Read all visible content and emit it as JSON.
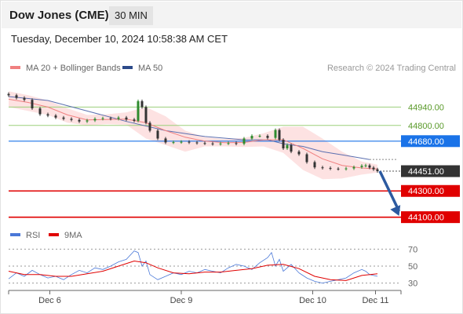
{
  "header": {
    "title": "Dow Jones (CME)",
    "interval": "30 MIN"
  },
  "timestamp": "Tuesday, December 10, 2024 10:58:38 AM CET",
  "colors": {
    "up": "#2e8b2e",
    "down": "#333333",
    "ma20": "#f08080",
    "bands": "#fde2e2",
    "ma50": "#5b6fb0",
    "green_line": "#9ccf7a",
    "blue_line": "#1a73e8",
    "red_line": "#e00000",
    "arrow": "#2c5aa0",
    "price_tag": "#333333",
    "rsi": "#4a78d8",
    "rsi_ma": "#e00000"
  },
  "chart_data": [
    {
      "type": "line",
      "legend": [
        {
          "label": "MA 20 + Bollinger Bands",
          "color": "#f08080"
        },
        {
          "label": "MA 50",
          "color": "#2c4a8a"
        }
      ],
      "legend_placement": "top-left",
      "credit": "Research © 2024 Trading Central",
      "ylim": [
        44020,
        45080
      ],
      "x_range": [
        0,
        100
      ],
      "x_ticks": [
        {
          "x": 10.5,
          "label": "Dec 6"
        },
        {
          "x": 44,
          "label": "Dec 9"
        },
        {
          "x": 77.5,
          "label": "Dec 10"
        },
        {
          "x": 93.5,
          "label": "Dec 11"
        }
      ],
      "price_series": [
        [
          0,
          45030
        ],
        [
          2,
          45010
        ],
        [
          4,
          44995
        ],
        [
          6,
          44930
        ],
        [
          8,
          44885
        ],
        [
          10,
          44875
        ],
        [
          12,
          44860
        ],
        [
          14,
          44850
        ],
        [
          16,
          44842
        ],
        [
          18,
          44830
        ],
        [
          20,
          44838
        ],
        [
          22,
          44850
        ],
        [
          24,
          44855
        ],
        [
          26,
          44850
        ],
        [
          28,
          44860
        ],
        [
          30,
          44845
        ],
        [
          32,
          44835
        ],
        [
          33,
          44985
        ],
        [
          34,
          44940
        ],
        [
          35,
          44820
        ],
        [
          36,
          44760
        ],
        [
          38,
          44700
        ],
        [
          40,
          44670
        ],
        [
          42,
          44672
        ],
        [
          44,
          44675
        ],
        [
          46,
          44670
        ],
        [
          48,
          44665
        ],
        [
          50,
          44662
        ],
        [
          52,
          44658
        ],
        [
          54,
          44662
        ],
        [
          56,
          44665
        ],
        [
          58,
          44660
        ],
        [
          60,
          44700
        ],
        [
          62,
          44720
        ],
        [
          64,
          44720
        ],
        [
          66,
          44705
        ],
        [
          68,
          44765
        ],
        [
          69,
          44690
        ],
        [
          70,
          44625
        ],
        [
          71,
          44650
        ],
        [
          72,
          44600
        ],
        [
          74,
          44580
        ],
        [
          76,
          44520
        ],
        [
          78,
          44480
        ],
        [
          80,
          44475
        ],
        [
          82,
          44470
        ],
        [
          84,
          44468
        ],
        [
          86,
          44472
        ],
        [
          88,
          44482
        ],
        [
          90,
          44492
        ],
        [
          91,
          44495
        ],
        [
          92,
          44478
        ],
        [
          93,
          44465
        ],
        [
          94,
          44451
        ]
      ],
      "ma20": [
        [
          0,
          45000
        ],
        [
          5,
          44975
        ],
        [
          10,
          44940
        ],
        [
          15,
          44880
        ],
        [
          20,
          44842
        ],
        [
          25,
          44845
        ],
        [
          30,
          44848
        ],
        [
          35,
          44820
        ],
        [
          40,
          44760
        ],
        [
          45,
          44710
        ],
        [
          50,
          44680
        ],
        [
          55,
          44668
        ],
        [
          60,
          44670
        ],
        [
          65,
          44690
        ],
        [
          70,
          44690
        ],
        [
          75,
          44625
        ],
        [
          80,
          44545
        ],
        [
          85,
          44495
        ],
        [
          90,
          44475
        ],
        [
          94,
          44468
        ]
      ],
      "upper_band": [
        [
          0,
          45060
        ],
        [
          5,
          45030
        ],
        [
          10,
          44990
        ],
        [
          15,
          44930
        ],
        [
          20,
          44880
        ],
        [
          25,
          44885
        ],
        [
          30,
          44900
        ],
        [
          35,
          44940
        ],
        [
          40,
          44870
        ],
        [
          45,
          44760
        ],
        [
          50,
          44710
        ],
        [
          55,
          44695
        ],
        [
          60,
          44705
        ],
        [
          65,
          44740
        ],
        [
          70,
          44790
        ],
        [
          75,
          44790
        ],
        [
          80,
          44700
        ],
        [
          85,
          44600
        ],
        [
          90,
          44525
        ],
        [
          94,
          44500
        ]
      ],
      "lower_band": [
        [
          0,
          44940
        ],
        [
          5,
          44910
        ],
        [
          10,
          44880
        ],
        [
          15,
          44820
        ],
        [
          20,
          44800
        ],
        [
          25,
          44810
        ],
        [
          30,
          44805
        ],
        [
          35,
          44700
        ],
        [
          40,
          44650
        ],
        [
          45,
          44600
        ],
        [
          50,
          44640
        ],
        [
          55,
          44640
        ],
        [
          60,
          44635
        ],
        [
          65,
          44640
        ],
        [
          70,
          44590
        ],
        [
          75,
          44460
        ],
        [
          80,
          44390
        ],
        [
          85,
          44395
        ],
        [
          90,
          44425
        ],
        [
          94,
          44440
        ]
      ],
      "ma50": [
        [
          0,
          45020
        ],
        [
          10,
          44990
        ],
        [
          20,
          44910
        ],
        [
          30,
          44830
        ],
        [
          40,
          44760
        ],
        [
          50,
          44715
        ],
        [
          60,
          44690
        ],
        [
          66,
          44690
        ],
        [
          70,
          44660
        ],
        [
          75,
          44640
        ],
        [
          80,
          44600
        ],
        [
          85,
          44575
        ],
        [
          90,
          44550
        ],
        [
          92,
          44540
        ]
      ],
      "levels": [
        {
          "value": 44940,
          "label": "44940.00",
          "kind": "green"
        },
        {
          "value": 44800,
          "label": "44800.00",
          "kind": "green"
        },
        {
          "value": 44680,
          "label": "44680.00",
          "kind": "blue"
        },
        {
          "value": 44451,
          "label": "44451.00",
          "kind": "price"
        },
        {
          "value": 44300,
          "label": "44300.00",
          "kind": "red"
        },
        {
          "value": 44100,
          "label": "44100.00",
          "kind": "red"
        }
      ],
      "arrow": {
        "from": [
          94,
          44451
        ],
        "to": [
          99.5,
          44110
        ]
      }
    },
    {
      "type": "line",
      "legend": [
        {
          "label": "RSI",
          "color": "#4a78d8"
        },
        {
          "label": "9MA",
          "color": "#e00000"
        }
      ],
      "ylim": [
        25,
        75
      ],
      "y_ticks": [
        70,
        50,
        30
      ],
      "rsi": [
        [
          0,
          35
        ],
        [
          2,
          42
        ],
        [
          4,
          38
        ],
        [
          6,
          45
        ],
        [
          8,
          40
        ],
        [
          10,
          36
        ],
        [
          12,
          38
        ],
        [
          14,
          34
        ],
        [
          16,
          40
        ],
        [
          18,
          45
        ],
        [
          20,
          42
        ],
        [
          22,
          48
        ],
        [
          24,
          46
        ],
        [
          26,
          50
        ],
        [
          28,
          55
        ],
        [
          30,
          58
        ],
        [
          32,
          68
        ],
        [
          33,
          66
        ],
        [
          34,
          50
        ],
        [
          35,
          56
        ],
        [
          36,
          40
        ],
        [
          38,
          34
        ],
        [
          40,
          38
        ],
        [
          42,
          42
        ],
        [
          44,
          40
        ],
        [
          46,
          44
        ],
        [
          48,
          42
        ],
        [
          50,
          46
        ],
        [
          52,
          44
        ],
        [
          54,
          42
        ],
        [
          56,
          48
        ],
        [
          58,
          52
        ],
        [
          60,
          50
        ],
        [
          62,
          46
        ],
        [
          64,
          54
        ],
        [
          66,
          60
        ],
        [
          67,
          66
        ],
        [
          68,
          50
        ],
        [
          69,
          58
        ],
        [
          70,
          44
        ],
        [
          72,
          52
        ],
        [
          74,
          42
        ],
        [
          76,
          36
        ],
        [
          78,
          32
        ],
        [
          80,
          30
        ],
        [
          82,
          32
        ],
        [
          84,
          34
        ],
        [
          86,
          36
        ],
        [
          88,
          42
        ],
        [
          90,
          46
        ],
        [
          91,
          44
        ],
        [
          92,
          40
        ],
        [
          94,
          38
        ]
      ],
      "ma9": [
        [
          0,
          44
        ],
        [
          4,
          40
        ],
        [
          8,
          40
        ],
        [
          12,
          38
        ],
        [
          16,
          38
        ],
        [
          20,
          41
        ],
        [
          24,
          44
        ],
        [
          28,
          50
        ],
        [
          32,
          56
        ],
        [
          35,
          54
        ],
        [
          38,
          48
        ],
        [
          42,
          42
        ],
        [
          46,
          41
        ],
        [
          50,
          43
        ],
        [
          54,
          43
        ],
        [
          58,
          45
        ],
        [
          62,
          47
        ],
        [
          66,
          51
        ],
        [
          70,
          52
        ],
        [
          74,
          47
        ],
        [
          78,
          38
        ],
        [
          82,
          34
        ],
        [
          86,
          33
        ],
        [
          90,
          39
        ],
        [
          94,
          41
        ]
      ]
    }
  ]
}
